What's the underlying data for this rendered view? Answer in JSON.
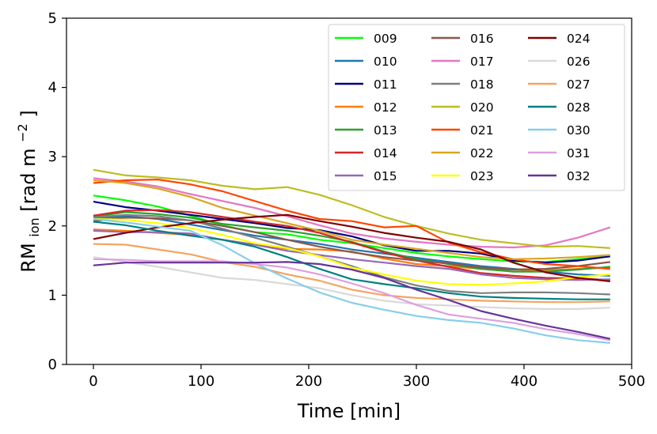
{
  "chart_data": {
    "type": "line",
    "xlabel": "Time [min]",
    "ylabel": {
      "base": "RM",
      "sub": "ion",
      "rest": " [rad m",
      "sup": "−2",
      "end": "]"
    },
    "xlim": [
      -25,
      500
    ],
    "ylim": [
      0,
      5
    ],
    "xticks": [
      0,
      100,
      200,
      300,
      400,
      500
    ],
    "yticks": [
      0,
      1,
      2,
      3,
      4,
      5
    ],
    "grid": false,
    "legend": {
      "placement": "top-right",
      "columns": 3
    },
    "x": [
      0,
      30,
      60,
      90,
      120,
      150,
      180,
      210,
      240,
      270,
      300,
      330,
      360,
      390,
      420,
      450,
      480
    ],
    "series": [
      {
        "name": "009",
        "color": "#00ff00",
        "values": [
          2.44,
          2.37,
          2.28,
          2.15,
          2.01,
          1.91,
          1.88,
          1.8,
          1.75,
          1.68,
          1.61,
          1.56,
          1.52,
          1.49,
          1.48,
          1.52,
          1.56
        ]
      },
      {
        "name": "010",
        "color": "#1f77b4",
        "values": [
          2.1,
          2.14,
          2.1,
          2.02,
          1.94,
          1.86,
          1.8,
          1.74,
          1.66,
          1.6,
          1.54,
          1.48,
          1.42,
          1.38,
          1.34,
          1.3,
          1.28
        ]
      },
      {
        "name": "011",
        "color": "#00007f",
        "values": [
          2.35,
          2.27,
          2.22,
          2.16,
          2.1,
          2.04,
          1.97,
          1.94,
          1.85,
          1.72,
          1.64,
          1.64,
          1.6,
          1.5,
          1.47,
          1.5,
          1.56
        ]
      },
      {
        "name": "012",
        "color": "#ff7f0e",
        "values": [
          1.95,
          1.93,
          1.9,
          1.87,
          1.8,
          1.73,
          1.67,
          1.66,
          1.63,
          1.53,
          1.45,
          1.42,
          1.38,
          1.37,
          1.36,
          1.38,
          1.4
        ]
      },
      {
        "name": "013",
        "color": "#2ca02c",
        "values": [
          2.13,
          2.2,
          2.17,
          2.12,
          2.03,
          1.98,
          1.93,
          1.86,
          1.77,
          1.63,
          1.52,
          1.45,
          1.38,
          1.34,
          1.34,
          1.37,
          1.41
        ]
      },
      {
        "name": "014",
        "color": "#d62728",
        "values": [
          2.15,
          2.22,
          2.23,
          2.2,
          2.13,
          2.06,
          2.0,
          1.9,
          1.76,
          1.62,
          1.5,
          1.41,
          1.32,
          1.28,
          1.25,
          1.24,
          1.22
        ]
      },
      {
        "name": "015",
        "color": "#9467bd",
        "values": [
          1.93,
          1.91,
          1.91,
          1.89,
          1.8,
          1.73,
          1.64,
          1.58,
          1.52,
          1.47,
          1.42,
          1.38,
          1.3,
          1.25,
          1.23,
          1.22,
          1.23
        ]
      },
      {
        "name": "016",
        "color": "#8c564b",
        "values": [
          2.07,
          2.12,
          2.11,
          2.08,
          2.0,
          1.91,
          1.8,
          1.7,
          1.62,
          1.55,
          1.5,
          1.46,
          1.4,
          1.37,
          1.38,
          1.42,
          1.48
        ]
      },
      {
        "name": "017",
        "color": "#e377c2",
        "values": [
          2.69,
          2.64,
          2.57,
          2.46,
          2.36,
          2.26,
          2.14,
          2.01,
          1.89,
          1.82,
          1.77,
          1.73,
          1.7,
          1.69,
          1.72,
          1.83,
          1.98
        ]
      },
      {
        "name": "018",
        "color": "#7f7f7f",
        "values": [
          2.12,
          2.16,
          2.14,
          2.08,
          1.96,
          1.83,
          1.7,
          1.56,
          1.42,
          1.26,
          1.14,
          1.06,
          1.03,
          1.04,
          1.04,
          1.03,
          1.01
        ]
      },
      {
        "name": "020",
        "color": "#bcbd22",
        "values": [
          2.81,
          2.73,
          2.7,
          2.66,
          2.58,
          2.53,
          2.56,
          2.45,
          2.3,
          2.13,
          2.0,
          1.89,
          1.8,
          1.75,
          1.7,
          1.71,
          1.68
        ]
      },
      {
        "name": "021",
        "color": "#ff4500",
        "values": [
          2.62,
          2.66,
          2.67,
          2.6,
          2.5,
          2.36,
          2.22,
          2.1,
          2.07,
          1.98,
          2.0,
          1.76,
          1.62,
          1.52,
          1.45,
          1.42,
          1.38
        ]
      },
      {
        "name": "022",
        "color": "#daa520",
        "values": [
          2.66,
          2.62,
          2.54,
          2.42,
          2.26,
          2.15,
          2.04,
          1.93,
          1.8,
          1.73,
          1.67,
          1.61,
          1.55,
          1.52,
          1.53,
          1.55,
          1.58
        ]
      },
      {
        "name": "023",
        "color": "#ffff00",
        "values": [
          2.1,
          2.09,
          2.04,
          1.97,
          1.87,
          1.75,
          1.68,
          1.56,
          1.4,
          1.3,
          1.21,
          1.16,
          1.15,
          1.17,
          1.2,
          1.26,
          1.3
        ]
      },
      {
        "name": "024",
        "color": "#7f0000",
        "values": [
          1.81,
          1.9,
          1.98,
          2.04,
          2.09,
          2.13,
          2.16,
          2.07,
          1.99,
          1.9,
          1.83,
          1.77,
          1.66,
          1.47,
          1.33,
          1.25,
          1.2
        ]
      },
      {
        "name": "026",
        "color": "#d9d9d9",
        "values": [
          1.55,
          1.48,
          1.41,
          1.33,
          1.25,
          1.22,
          1.16,
          1.1,
          1.0,
          0.92,
          0.87,
          0.85,
          0.83,
          0.81,
          0.8,
          0.8,
          0.82
        ]
      },
      {
        "name": "027",
        "color": "#f4a460",
        "values": [
          1.74,
          1.73,
          1.66,
          1.59,
          1.48,
          1.41,
          1.3,
          1.21,
          1.08,
          1.0,
          0.96,
          0.94,
          0.92,
          0.91,
          0.9,
          0.9,
          0.91
        ]
      },
      {
        "name": "028",
        "color": "#008080",
        "values": [
          2.06,
          2.01,
          1.93,
          1.86,
          1.8,
          1.7,
          1.55,
          1.38,
          1.23,
          1.16,
          1.1,
          1.03,
          0.98,
          0.96,
          0.95,
          0.94,
          0.94
        ]
      },
      {
        "name": "030",
        "color": "#87ceeb",
        "values": [
          2.1,
          2.05,
          1.99,
          1.93,
          1.72,
          1.46,
          1.24,
          1.04,
          0.89,
          0.79,
          0.7,
          0.64,
          0.6,
          0.52,
          0.42,
          0.35,
          0.31
        ]
      },
      {
        "name": "031",
        "color": "#dda0dd",
        "values": [
          1.52,
          1.51,
          1.49,
          1.49,
          1.49,
          1.45,
          1.4,
          1.3,
          1.17,
          1.03,
          0.86,
          0.72,
          0.66,
          0.6,
          0.51,
          0.44,
          0.35
        ]
      },
      {
        "name": "032",
        "color": "#663399",
        "values": [
          1.43,
          1.47,
          1.47,
          1.47,
          1.47,
          1.47,
          1.48,
          1.45,
          1.37,
          1.25,
          1.08,
          0.93,
          0.77,
          0.66,
          0.56,
          0.47,
          0.37
        ]
      }
    ]
  }
}
